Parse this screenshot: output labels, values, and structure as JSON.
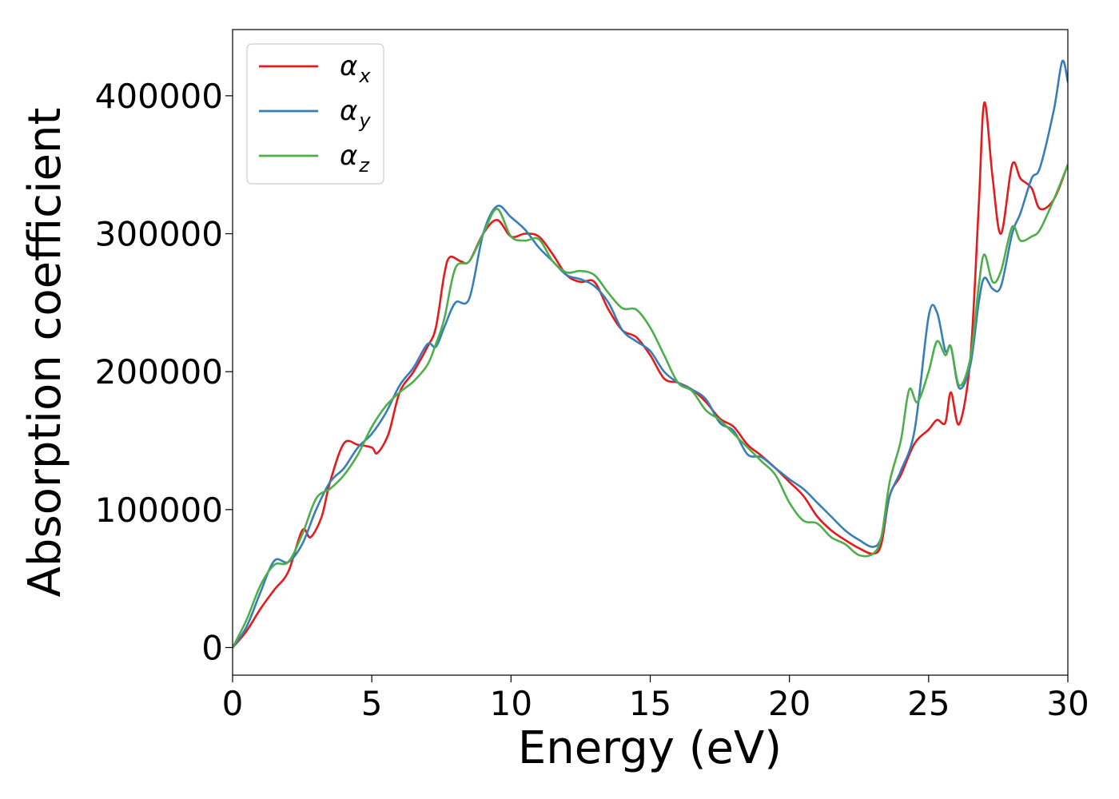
{
  "chart_data": {
    "type": "line",
    "title": "",
    "xlabel": "Energy (eV)",
    "ylabel": "Absorption coefficient",
    "xlim": [
      0,
      30
    ],
    "ylim": [
      -20000,
      448000
    ],
    "xticks": [
      0,
      5,
      10,
      15,
      20,
      25,
      30
    ],
    "yticks": [
      0,
      100000,
      200000,
      300000,
      400000
    ],
    "xtick_labels": [
      "0",
      "5",
      "10",
      "15",
      "20",
      "25",
      "30"
    ],
    "ytick_labels": [
      "0",
      "100000",
      "200000",
      "300000",
      "400000"
    ],
    "grid": false,
    "legend_position": "top-left",
    "series": [
      {
        "name": "α_x",
        "label_main": "α",
        "label_sub": "x",
        "color": "#e41a1c",
        "points": [
          [
            0,
            0
          ],
          [
            0.5,
            12000
          ],
          [
            1,
            28000
          ],
          [
            1.5,
            42000
          ],
          [
            2,
            55000
          ],
          [
            2.5,
            85000
          ],
          [
            2.8,
            80000
          ],
          [
            3.2,
            95000
          ],
          [
            3.5,
            120000
          ],
          [
            4,
            148000
          ],
          [
            4.5,
            147000
          ],
          [
            5,
            145000
          ],
          [
            5.2,
            141000
          ],
          [
            5.6,
            155000
          ],
          [
            6,
            185000
          ],
          [
            6.5,
            200000
          ],
          [
            7,
            218000
          ],
          [
            7.3,
            232000
          ],
          [
            7.6,
            270000
          ],
          [
            7.8,
            283000
          ],
          [
            8.2,
            280000
          ],
          [
            8.5,
            280000
          ],
          [
            9,
            300000
          ],
          [
            9.5,
            310000
          ],
          [
            10,
            298000
          ],
          [
            10.5,
            300000
          ],
          [
            11,
            298000
          ],
          [
            11.5,
            285000
          ],
          [
            12,
            270000
          ],
          [
            12.5,
            265000
          ],
          [
            13,
            265000
          ],
          [
            13.5,
            245000
          ],
          [
            14,
            230000
          ],
          [
            14.5,
            225000
          ],
          [
            15,
            212000
          ],
          [
            15.5,
            195000
          ],
          [
            16,
            192000
          ],
          [
            16.5,
            187000
          ],
          [
            17,
            178000
          ],
          [
            17.5,
            166000
          ],
          [
            18,
            160000
          ],
          [
            18.5,
            147000
          ],
          [
            19,
            139000
          ],
          [
            19.5,
            130000
          ],
          [
            20,
            120000
          ],
          [
            20.5,
            110000
          ],
          [
            21,
            95000
          ],
          [
            21.5,
            85000
          ],
          [
            22,
            78000
          ],
          [
            22.5,
            72000
          ],
          [
            23,
            68000
          ],
          [
            23.3,
            75000
          ],
          [
            23.6,
            110000
          ],
          [
            24,
            125000
          ],
          [
            24.5,
            148000
          ],
          [
            25,
            158000
          ],
          [
            25.3,
            165000
          ],
          [
            25.6,
            163000
          ],
          [
            25.8,
            185000
          ],
          [
            26.1,
            162000
          ],
          [
            26.5,
            210000
          ],
          [
            26.8,
            320000
          ],
          [
            27,
            395000
          ],
          [
            27.3,
            340000
          ],
          [
            27.6,
            300000
          ],
          [
            28,
            350000
          ],
          [
            28.3,
            340000
          ],
          [
            28.7,
            333000
          ],
          [
            29,
            318000
          ],
          [
            29.5,
            325000
          ],
          [
            30,
            350000
          ]
        ]
      },
      {
        "name": "α_y",
        "label_main": "α",
        "label_sub": "y",
        "color": "#377eb8",
        "points": [
          [
            0,
            0
          ],
          [
            0.5,
            15000
          ],
          [
            1,
            40000
          ],
          [
            1.5,
            63000
          ],
          [
            2,
            62000
          ],
          [
            2.5,
            75000
          ],
          [
            3,
            100000
          ],
          [
            3.5,
            120000
          ],
          [
            4,
            130000
          ],
          [
            4.5,
            145000
          ],
          [
            5,
            155000
          ],
          [
            5.5,
            170000
          ],
          [
            6,
            190000
          ],
          [
            6.5,
            203000
          ],
          [
            7,
            220000
          ],
          [
            7.3,
            218000
          ],
          [
            7.6,
            232000
          ],
          [
            8,
            250000
          ],
          [
            8.5,
            253000
          ],
          [
            9,
            300000
          ],
          [
            9.5,
            320000
          ],
          [
            10,
            312000
          ],
          [
            10.5,
            303000
          ],
          [
            11,
            290000
          ],
          [
            11.5,
            280000
          ],
          [
            12,
            270000
          ],
          [
            12.5,
            267000
          ],
          [
            13,
            262000
          ],
          [
            13.5,
            250000
          ],
          [
            14,
            230000
          ],
          [
            14.5,
            222000
          ],
          [
            15,
            215000
          ],
          [
            15.5,
            200000
          ],
          [
            16,
            192000
          ],
          [
            16.5,
            187000
          ],
          [
            17,
            180000
          ],
          [
            17.5,
            163000
          ],
          [
            18,
            157000
          ],
          [
            18.5,
            140000
          ],
          [
            19,
            138000
          ],
          [
            19.5,
            130000
          ],
          [
            20,
            122000
          ],
          [
            20.5,
            115000
          ],
          [
            21,
            105000
          ],
          [
            21.5,
            95000
          ],
          [
            22,
            85000
          ],
          [
            22.5,
            78000
          ],
          [
            23,
            73000
          ],
          [
            23.3,
            80000
          ],
          [
            23.6,
            110000
          ],
          [
            24,
            128000
          ],
          [
            24.5,
            158000
          ],
          [
            25,
            240000
          ],
          [
            25.3,
            243000
          ],
          [
            25.6,
            215000
          ],
          [
            25.8,
            218000
          ],
          [
            26.1,
            188000
          ],
          [
            26.5,
            205000
          ],
          [
            26.8,
            250000
          ],
          [
            27,
            268000
          ],
          [
            27.3,
            260000
          ],
          [
            27.6,
            262000
          ],
          [
            28,
            300000
          ],
          [
            28.3,
            315000
          ],
          [
            28.7,
            340000
          ],
          [
            29,
            348000
          ],
          [
            29.5,
            390000
          ],
          [
            29.8,
            425000
          ],
          [
            30,
            410000
          ]
        ]
      },
      {
        "name": "α_z",
        "label_main": "α",
        "label_sub": "z",
        "color": "#4daf4a",
        "points": [
          [
            0,
            0
          ],
          [
            0.5,
            20000
          ],
          [
            1,
            45000
          ],
          [
            1.5,
            60000
          ],
          [
            2,
            62000
          ],
          [
            2.5,
            82000
          ],
          [
            3,
            108000
          ],
          [
            3.5,
            115000
          ],
          [
            4,
            125000
          ],
          [
            4.5,
            140000
          ],
          [
            5,
            160000
          ],
          [
            5.5,
            175000
          ],
          [
            6,
            185000
          ],
          [
            6.5,
            193000
          ],
          [
            7,
            205000
          ],
          [
            7.3,
            220000
          ],
          [
            7.6,
            238000
          ],
          [
            8,
            275000
          ],
          [
            8.5,
            280000
          ],
          [
            9,
            300000
          ],
          [
            9.5,
            318000
          ],
          [
            10,
            298000
          ],
          [
            10.5,
            295000
          ],
          [
            11,
            296000
          ],
          [
            11.5,
            280000
          ],
          [
            12,
            272000
          ],
          [
            12.5,
            273000
          ],
          [
            13,
            270000
          ],
          [
            13.5,
            257000
          ],
          [
            14,
            246000
          ],
          [
            14.5,
            245000
          ],
          [
            15,
            232000
          ],
          [
            15.5,
            212000
          ],
          [
            16,
            192000
          ],
          [
            16.5,
            186000
          ],
          [
            17,
            172000
          ],
          [
            17.5,
            165000
          ],
          [
            18,
            155000
          ],
          [
            18.5,
            145000
          ],
          [
            19,
            135000
          ],
          [
            19.5,
            125000
          ],
          [
            20,
            105000
          ],
          [
            20.5,
            92000
          ],
          [
            21,
            90000
          ],
          [
            21.5,
            80000
          ],
          [
            22,
            75000
          ],
          [
            22.5,
            67000
          ],
          [
            23,
            68000
          ],
          [
            23.3,
            80000
          ],
          [
            23.6,
            120000
          ],
          [
            24,
            150000
          ],
          [
            24.3,
            187000
          ],
          [
            24.6,
            178000
          ],
          [
            25,
            200000
          ],
          [
            25.3,
            222000
          ],
          [
            25.6,
            212000
          ],
          [
            25.8,
            218000
          ],
          [
            26.1,
            190000
          ],
          [
            26.5,
            210000
          ],
          [
            26.8,
            262000
          ],
          [
            27,
            285000
          ],
          [
            27.3,
            265000
          ],
          [
            27.6,
            273000
          ],
          [
            28,
            305000
          ],
          [
            28.3,
            295000
          ],
          [
            28.7,
            298000
          ],
          [
            29,
            303000
          ],
          [
            29.5,
            325000
          ],
          [
            30,
            350000
          ]
        ]
      }
    ]
  }
}
